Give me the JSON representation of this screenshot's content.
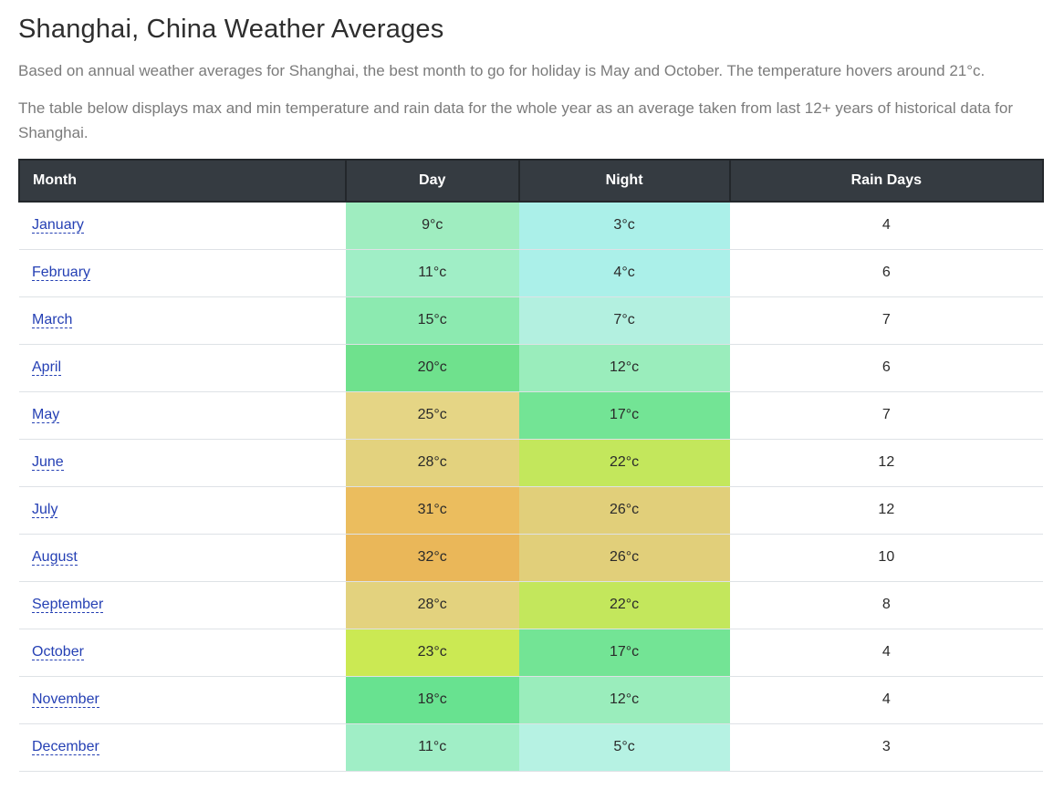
{
  "page": {
    "title": "Shanghai, China Weather Averages",
    "intro1": "Based on annual weather averages for Shanghai, the best month to go for holiday is May and October. The temperature hovers around 21°c.",
    "intro2": "The table below displays max and min temperature and rain data for the whole year as an average taken from last 12+ years of historical data for Shanghai."
  },
  "colors": {
    "header_bg": "#353b41",
    "header_border": "#23272b",
    "header_text": "#ffffff",
    "row_divider": "#dee2e6",
    "link_blue": "#2540b4"
  },
  "chart_data": {
    "type": "table",
    "title": "Shanghai, China Weather Averages",
    "columns": [
      "Month",
      "Day",
      "Night",
      "Rain Days"
    ],
    "day_c": [
      9,
      11,
      15,
      20,
      25,
      28,
      31,
      32,
      28,
      23,
      18,
      11
    ],
    "night_c": [
      3,
      4,
      7,
      12,
      17,
      22,
      26,
      26,
      22,
      17,
      12,
      5
    ],
    "rain_days": [
      4,
      6,
      7,
      6,
      7,
      12,
      12,
      10,
      8,
      4,
      4,
      3
    ],
    "months": [
      "January",
      "February",
      "March",
      "April",
      "May",
      "June",
      "July",
      "August",
      "September",
      "October",
      "November",
      "December"
    ]
  },
  "table": {
    "headers": [
      "Month",
      "Day",
      "Night",
      "Rain Days"
    ],
    "rows": [
      {
        "month": "January",
        "day": "9°c",
        "night": "3°c",
        "rain_days": "4",
        "day_color": "#9fedc0",
        "night_color": "#abf0e9"
      },
      {
        "month": "February",
        "day": "11°c",
        "night": "4°c",
        "rain_days": "6",
        "day_color": "#a0eec6",
        "night_color": "#abf0e9"
      },
      {
        "month": "March",
        "day": "15°c",
        "night": "7°c",
        "rain_days": "7",
        "day_color": "#8ceab0",
        "night_color": "#b3f0e0"
      },
      {
        "month": "April",
        "day": "20°c",
        "night": "12°c",
        "rain_days": "6",
        "day_color": "#6fe18d",
        "night_color": "#9aedbc"
      },
      {
        "month": "May",
        "day": "25°c",
        "night": "17°c",
        "rain_days": "7",
        "day_color": "#e5d585",
        "night_color": "#73e495"
      },
      {
        "month": "June",
        "day": "28°c",
        "night": "22°c",
        "rain_days": "12",
        "day_color": "#e3d27e",
        "night_color": "#c3e75c"
      },
      {
        "month": "July",
        "day": "31°c",
        "night": "26°c",
        "rain_days": "12",
        "day_color": "#ebbd5e",
        "night_color": "#e1cf7a"
      },
      {
        "month": "August",
        "day": "32°c",
        "night": "26°c",
        "rain_days": "10",
        "day_color": "#eab759",
        "night_color": "#e1cf7a"
      },
      {
        "month": "September",
        "day": "28°c",
        "night": "22°c",
        "rain_days": "8",
        "day_color": "#e3d27e",
        "night_color": "#c3e75c"
      },
      {
        "month": "October",
        "day": "23°c",
        "night": "17°c",
        "rain_days": "4",
        "day_color": "#cbe953",
        "night_color": "#73e495"
      },
      {
        "month": "November",
        "day": "18°c",
        "night": "12°c",
        "rain_days": "4",
        "day_color": "#68e290",
        "night_color": "#9aedbc"
      },
      {
        "month": "December",
        "day": "11°c",
        "night": "5°c",
        "rain_days": "3",
        "day_color": "#a0eec6",
        "night_color": "#b6f2e3"
      }
    ]
  }
}
